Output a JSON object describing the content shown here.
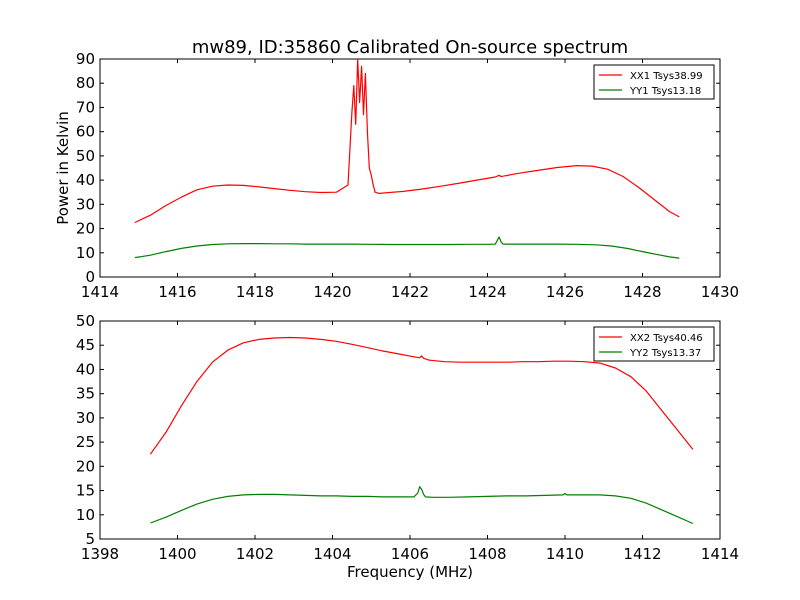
{
  "chart_data": [
    {
      "type": "line",
      "title": "mw89, ID:35860 Calibrated On-source spectrum",
      "xlabel": "",
      "ylabel": "Power in Kelvin",
      "xlim": [
        1414,
        1430
      ],
      "ylim": [
        0,
        90
      ],
      "xticks": [
        "1414",
        "1416",
        "1418",
        "1420",
        "1422",
        "1424",
        "1426",
        "1428",
        "1430"
      ],
      "yticks": [
        "0",
        "10",
        "20",
        "30",
        "40",
        "50",
        "60",
        "70",
        "80",
        "90"
      ],
      "legend_position": "top-right",
      "series": [
        {
          "name": "XX1 Tsys38.99",
          "color": "#ff0000",
          "x": [
            1414.9,
            1415.3,
            1415.7,
            1416.1,
            1416.5,
            1416.9,
            1417.3,
            1417.7,
            1418.1,
            1418.5,
            1418.9,
            1419.3,
            1419.7,
            1420.1,
            1420.4,
            1420.5,
            1420.55,
            1420.6,
            1420.65,
            1420.7,
            1420.75,
            1420.8,
            1420.85,
            1420.9,
            1420.95,
            1421.0,
            1421.05,
            1421.1,
            1421.2,
            1421.4,
            1421.8,
            1422.3,
            1422.8,
            1423.3,
            1423.8,
            1424.2,
            1424.3,
            1424.35,
            1424.4,
            1424.8,
            1425.3,
            1425.8,
            1426.3,
            1426.7,
            1427.1,
            1427.5,
            1427.9,
            1428.3,
            1428.7,
            1428.95
          ],
          "values": [
            22.5,
            25.5,
            29.5,
            33,
            36,
            37.5,
            38,
            37.8,
            37.2,
            36.5,
            35.8,
            35.2,
            34.9,
            35,
            38,
            68,
            79,
            63,
            90,
            72,
            87,
            67,
            84,
            60,
            45,
            42,
            38,
            35,
            34.5,
            34.8,
            35.3,
            36.3,
            37.5,
            38.8,
            40.2,
            41.3,
            42,
            41.5,
            41.6,
            42.8,
            44,
            45.2,
            46,
            45.8,
            44.5,
            41.5,
            37,
            32,
            27,
            24.8
          ]
        },
        {
          "name": "YY1 Tsys13.18",
          "color": "#008000",
          "x": [
            1414.9,
            1415.3,
            1415.7,
            1416.1,
            1416.5,
            1416.9,
            1417.3,
            1417.7,
            1418.1,
            1418.5,
            1418.9,
            1419.3,
            1419.7,
            1420.1,
            1420.5,
            1421.0,
            1421.5,
            1422.0,
            1422.5,
            1423.0,
            1423.5,
            1424.0,
            1424.2,
            1424.25,
            1424.3,
            1424.35,
            1424.4,
            1424.8,
            1425.3,
            1425.8,
            1426.3,
            1426.8,
            1427.2,
            1427.6,
            1428.0,
            1428.4,
            1428.7,
            1428.95
          ],
          "values": [
            8,
            9,
            10.5,
            11.8,
            12.8,
            13.4,
            13.7,
            13.8,
            13.8,
            13.7,
            13.7,
            13.6,
            13.6,
            13.6,
            13.6,
            13.5,
            13.4,
            13.4,
            13.4,
            13.4,
            13.5,
            13.5,
            13.6,
            15,
            16.5,
            14.5,
            13.6,
            13.6,
            13.6,
            13.6,
            13.5,
            13.3,
            12.8,
            11.8,
            10.5,
            9.2,
            8.3,
            7.8
          ]
        }
      ]
    },
    {
      "type": "line",
      "title": "",
      "xlabel": "Frequency (MHz)",
      "ylabel": "",
      "xlim": [
        1398,
        1414
      ],
      "ylim": [
        5,
        50
      ],
      "xticks": [
        "1398",
        "1400",
        "1402",
        "1404",
        "1406",
        "1408",
        "1410",
        "1412",
        "1414"
      ],
      "yticks": [
        "5",
        "10",
        "15",
        "20",
        "25",
        "30",
        "35",
        "40",
        "45",
        "50"
      ],
      "legend_position": "top-right",
      "series": [
        {
          "name": "XX2 Tsys40.46",
          "color": "#ff0000",
          "x": [
            1399.3,
            1399.7,
            1400.1,
            1400.5,
            1400.9,
            1401.3,
            1401.7,
            1402.1,
            1402.5,
            1402.9,
            1403.3,
            1403.7,
            1404.1,
            1404.5,
            1404.9,
            1405.3,
            1405.7,
            1406.1,
            1406.25,
            1406.3,
            1406.35,
            1406.5,
            1406.9,
            1407.3,
            1407.7,
            1408.1,
            1408.5,
            1408.9,
            1409.3,
            1409.7,
            1410.1,
            1410.5,
            1410.9,
            1411.3,
            1411.7,
            1412.1,
            1412.5,
            1412.9,
            1413.3
          ],
          "values": [
            22.5,
            27,
            32.5,
            37.5,
            41.5,
            44,
            45.5,
            46.2,
            46.5,
            46.6,
            46.5,
            46.2,
            45.8,
            45.2,
            44.5,
            43.8,
            43.2,
            42.6,
            42.4,
            42.8,
            42.3,
            41.9,
            41.6,
            41.5,
            41.5,
            41.5,
            41.5,
            41.6,
            41.6,
            41.7,
            41.7,
            41.6,
            41.3,
            40.3,
            38.5,
            35.5,
            31.5,
            27.5,
            23.5
          ]
        },
        {
          "name": "YY2 Tsys13.37",
          "color": "#008000",
          "x": [
            1399.3,
            1399.7,
            1400.1,
            1400.5,
            1400.9,
            1401.3,
            1401.7,
            1402.1,
            1402.5,
            1402.9,
            1403.3,
            1403.7,
            1404.1,
            1404.5,
            1404.9,
            1405.3,
            1405.7,
            1406.1,
            1406.2,
            1406.25,
            1406.3,
            1406.35,
            1406.4,
            1406.6,
            1407.0,
            1407.5,
            1408.0,
            1408.5,
            1409.0,
            1409.5,
            1409.95,
            1410.0,
            1410.05,
            1410.5,
            1410.9,
            1411.3,
            1411.7,
            1412.1,
            1412.5,
            1412.9,
            1413.3
          ],
          "values": [
            8.3,
            9.5,
            10.9,
            12.2,
            13.2,
            13.8,
            14.1,
            14.2,
            14.2,
            14.1,
            14,
            13.9,
            13.9,
            13.8,
            13.8,
            13.7,
            13.7,
            13.7,
            14.5,
            15.8,
            15.3,
            14.2,
            13.7,
            13.6,
            13.6,
            13.7,
            13.8,
            13.9,
            13.9,
            14,
            14.1,
            14.4,
            14.1,
            14.1,
            14.1,
            13.9,
            13.4,
            12.4,
            11,
            9.6,
            8.2
          ]
        }
      ]
    }
  ]
}
